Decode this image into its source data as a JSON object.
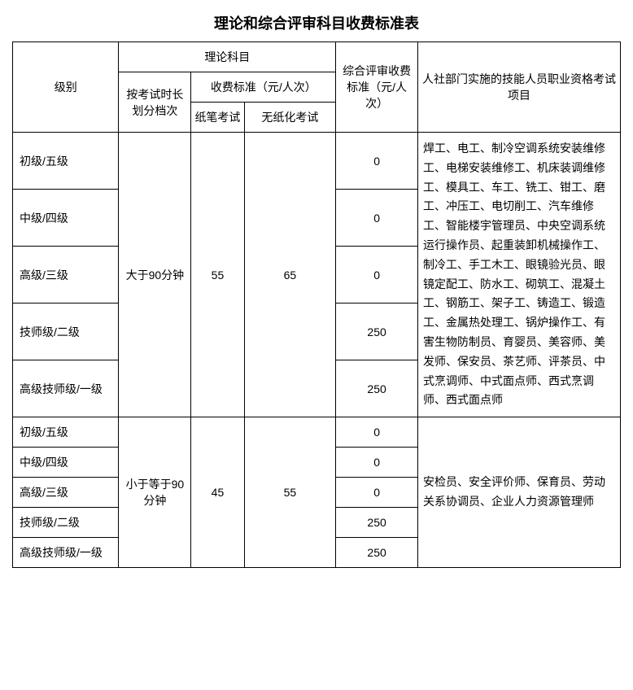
{
  "title": "理论和综合评审科目收费标准表",
  "header": {
    "level": "级别",
    "theory_subject": "理论科目",
    "duration": "按考试时长划分档次",
    "fee_standard": "收费标准（元/人次）",
    "paper_exam": "纸笔考试",
    "paperless_exam": "无纸化考试",
    "review_fee": "综合评审收费标准（元/人次）",
    "projects": "人社部门实施的技能人员职业资格考试项目"
  },
  "group1": {
    "duration": "大于90分钟",
    "paper_fee": "55",
    "paperless_fee": "65",
    "projects": "焊工、电工、制冷空调系统安装维修工、电梯安装维修工、机床装调维修工、模具工、车工、铣工、钳工、磨工、冲压工、电切削工、汽车维修工、智能楼宇管理员、中央空调系统运行操作员、起重装卸机械操作工、制冷工、手工木工、眼镜验光员、眼镜定配工、防水工、砌筑工、混凝土工、钢筋工、架子工、铸造工、锻造工、金属热处理工、锅炉操作工、有害生物防制员、育婴员、美容师、美发师、保安员、茶艺师、评茶员、中式烹调师、中式面点师、西式烹调师、西式面点师",
    "rows": [
      {
        "level": "初级/五级",
        "review": "0"
      },
      {
        "level": "中级/四级",
        "review": "0"
      },
      {
        "level": "高级/三级",
        "review": "0"
      },
      {
        "level": "技师级/二级",
        "review": "250"
      },
      {
        "level": "高级技师级/一级",
        "review": "250"
      }
    ]
  },
  "group2": {
    "duration": "小于等于90分钟",
    "paper_fee": "45",
    "paperless_fee": "55",
    "projects": "安检员、安全评价师、保育员、劳动关系协调员、企业人力资源管理师",
    "rows": [
      {
        "level": "初级/五级",
        "review": "0"
      },
      {
        "level": "中级/四级",
        "review": "0"
      },
      {
        "level": "高级/三级",
        "review": "0"
      },
      {
        "level": "技师级/二级",
        "review": "250"
      },
      {
        "level": "高级技师级/一级",
        "review": "250"
      }
    ]
  }
}
